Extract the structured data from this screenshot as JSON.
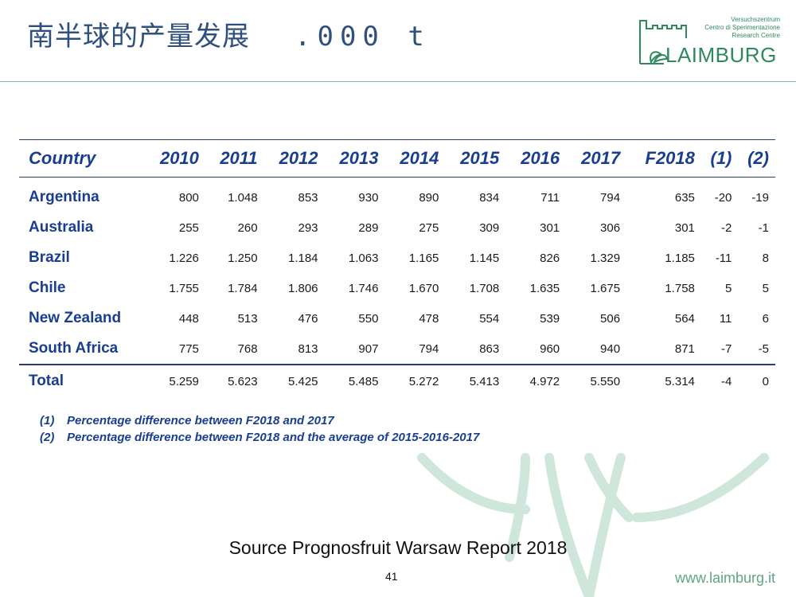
{
  "slide": {
    "title": "南半球的产量发展",
    "unit": ".000 t",
    "logo": {
      "tagline1": "Versuchszentrum",
      "tagline2": "Centro di Sperimentazione",
      "tagline3": "Research Centre",
      "wordmark": "LAIMBURG"
    },
    "source": "Source Prognosfruit Warsaw Report 2018",
    "page_number": "41",
    "website": "www.laimburg.it"
  },
  "table": {
    "headers": [
      "Country",
      "2010",
      "2011",
      "2012",
      "2013",
      "2014",
      "2015",
      "2016",
      "2017",
      "F2018",
      "(1)",
      "(2)"
    ],
    "rows": [
      [
        "Argentina",
        "800",
        "1.048",
        "853",
        "930",
        "890",
        "834",
        "711",
        "794",
        "635",
        "-20",
        "-19"
      ],
      [
        "Australia",
        "255",
        "260",
        "293",
        "289",
        "275",
        "309",
        "301",
        "306",
        "301",
        "-2",
        "-1"
      ],
      [
        "Brazil",
        "1.226",
        "1.250",
        "1.184",
        "1.063",
        "1.165",
        "1.145",
        "826",
        "1.329",
        "1.185",
        "-11",
        "8"
      ],
      [
        "Chile",
        "1.755",
        "1.784",
        "1.806",
        "1.746",
        "1.670",
        "1.708",
        "1.635",
        "1.675",
        "1.758",
        "5",
        "5"
      ],
      [
        "New Zealand",
        "448",
        "513",
        "476",
        "550",
        "478",
        "554",
        "539",
        "506",
        "564",
        "11",
        "6"
      ],
      [
        "South Africa",
        "775",
        "768",
        "813",
        "907",
        "794",
        "863",
        "960",
        "940",
        "871",
        "-7",
        "-5"
      ]
    ],
    "total": [
      "Total",
      "5.259",
      "5.623",
      "5.425",
      "5.485",
      "5.272",
      "5.413",
      "4.972",
      "5.550",
      "5.314",
      "-4",
      "0"
    ]
  },
  "notes": [
    {
      "num": "(1)",
      "text": "Percentage difference between F2018 and 2017"
    },
    {
      "num": "(2)",
      "text": "Percentage difference between F2018 and the average of 2015-2016-2017"
    }
  ],
  "colors": {
    "title": "#2f4f7f",
    "header_text": "#1a3e8f",
    "brand_green": "#2e8a5c",
    "watermark": "#c9e3d6"
  }
}
